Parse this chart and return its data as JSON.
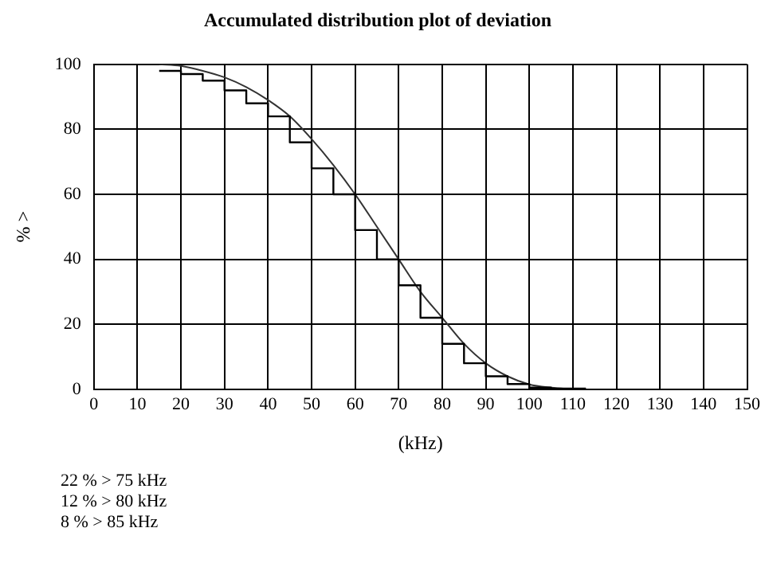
{
  "chart_data": {
    "type": "line",
    "title": "Accumulated distribution plot of deviation",
    "xlabel": "(kHz)",
    "ylabel": "% >",
    "xlim": [
      0,
      150
    ],
    "xticks": [
      0,
      10,
      20,
      30,
      40,
      50,
      60,
      70,
      80,
      90,
      100,
      110,
      120,
      130,
      140,
      150
    ],
    "ylim": [
      0,
      100
    ],
    "yticks": [
      0,
      20,
      40,
      60,
      80,
      100
    ],
    "grid": true,
    "marker": "none",
    "series": [
      {
        "type": "step",
        "color": "#000000",
        "x": [
          15,
          20,
          25,
          30,
          35,
          40,
          45,
          50,
          55,
          60,
          65,
          70,
          75,
          80,
          85,
          90,
          95,
          100,
          105,
          113
        ],
        "values": [
          98,
          97,
          95,
          92,
          88,
          84,
          76,
          68,
          60,
          49,
          40,
          32,
          22,
          14,
          8,
          4,
          1.6,
          0.5,
          0.2,
          0.2
        ]
      },
      {
        "type": "line",
        "color": "#333333",
        "x": [
          15,
          20,
          25,
          30,
          35,
          40,
          45,
          50,
          55,
          60,
          65,
          70,
          75,
          80,
          85,
          90,
          95,
          100,
          105,
          110
        ],
        "values": [
          100,
          99.5,
          98,
          96,
          93,
          89,
          84,
          77,
          69,
          60,
          50,
          40,
          30,
          22,
          14,
          8,
          4,
          1.5,
          0.5,
          0
        ]
      }
    ],
    "annotations": [
      "22 % > 75 kHz",
      "12 % > 80 kHz",
      "8 % > 85 kHz"
    ]
  }
}
